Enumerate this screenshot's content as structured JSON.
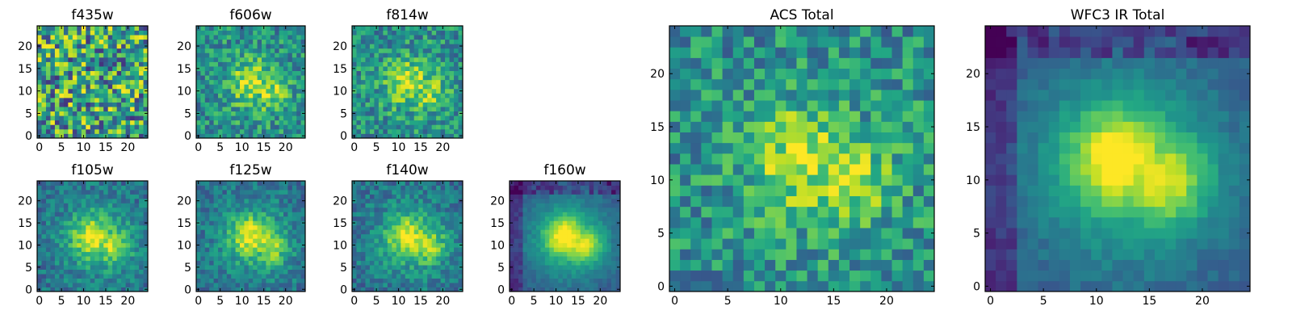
{
  "chart_data": [
    {
      "type": "heatmap",
      "title": "f435w",
      "x_ticks": [
        "0",
        "5",
        "10",
        "15",
        "20"
      ],
      "y_ticks": [
        "0",
        "5",
        "10",
        "15",
        "20"
      ],
      "xlim": [
        0,
        25
      ],
      "ylim": [
        0,
        25
      ],
      "grid_size": 25,
      "colormap": "viridis",
      "pattern": "noise",
      "seed": 11
    },
    {
      "type": "heatmap",
      "title": "f606w",
      "x_ticks": [
        "0",
        "5",
        "10",
        "15",
        "20"
      ],
      "y_ticks": [
        "0",
        "5",
        "10",
        "15",
        "20"
      ],
      "xlim": [
        0,
        25
      ],
      "ylim": [
        0,
        25
      ],
      "grid_size": 25,
      "colormap": "viridis",
      "pattern": "faint-source",
      "seed": 23
    },
    {
      "type": "heatmap",
      "title": "f814w",
      "x_ticks": [
        "0",
        "5",
        "10",
        "15",
        "20"
      ],
      "y_ticks": [
        "0",
        "5",
        "10",
        "15",
        "20"
      ],
      "xlim": [
        0,
        25
      ],
      "ylim": [
        0,
        25
      ],
      "grid_size": 25,
      "colormap": "viridis",
      "pattern": "faint-source",
      "seed": 37
    },
    {
      "type": "heatmap",
      "title": "f105w",
      "x_ticks": [
        "0",
        "5",
        "10",
        "15",
        "20"
      ],
      "y_ticks": [
        "0",
        "5",
        "10",
        "15",
        "20"
      ],
      "xlim": [
        0,
        25
      ],
      "ylim": [
        0,
        25
      ],
      "grid_size": 25,
      "colormap": "viridis",
      "pattern": "source",
      "seed": 41
    },
    {
      "type": "heatmap",
      "title": "f125w",
      "x_ticks": [
        "0",
        "5",
        "10",
        "15",
        "20"
      ],
      "y_ticks": [
        "0",
        "5",
        "10",
        "15",
        "20"
      ],
      "xlim": [
        0,
        25
      ],
      "ylim": [
        0,
        25
      ],
      "grid_size": 25,
      "colormap": "viridis",
      "pattern": "source",
      "seed": 53
    },
    {
      "type": "heatmap",
      "title": "f140w",
      "x_ticks": [
        "0",
        "5",
        "10",
        "15",
        "20"
      ],
      "y_ticks": [
        "0",
        "5",
        "10",
        "15",
        "20"
      ],
      "xlim": [
        0,
        25
      ],
      "ylim": [
        0,
        25
      ],
      "grid_size": 25,
      "colormap": "viridis",
      "pattern": "source",
      "seed": 67
    },
    {
      "type": "heatmap",
      "title": "f160w",
      "x_ticks": [
        "0",
        "5",
        "10",
        "15",
        "20"
      ],
      "y_ticks": [
        "0",
        "5",
        "10",
        "15",
        "20"
      ],
      "xlim": [
        0,
        25
      ],
      "ylim": [
        0,
        25
      ],
      "grid_size": 25,
      "colormap": "viridis",
      "pattern": "smooth-source",
      "seed": 79
    },
    {
      "type": "heatmap",
      "title": "ACS Total",
      "x_ticks": [
        "0",
        "5",
        "10",
        "15",
        "20"
      ],
      "y_ticks": [
        "0",
        "5",
        "10",
        "15",
        "20"
      ],
      "xlim": [
        0,
        25
      ],
      "ylim": [
        0,
        25
      ],
      "grid_size": 25,
      "colormap": "viridis",
      "pattern": "faint-source",
      "seed": 97
    },
    {
      "type": "heatmap",
      "title": "WFC3 IR Total",
      "x_ticks": [
        "0",
        "5",
        "10",
        "15",
        "20"
      ],
      "y_ticks": [
        "0",
        "5",
        "10",
        "15",
        "20"
      ],
      "xlim": [
        0,
        25
      ],
      "ylim": [
        0,
        25
      ],
      "grid_size": 25,
      "colormap": "viridis",
      "pattern": "smooth-source",
      "seed": 113
    }
  ]
}
